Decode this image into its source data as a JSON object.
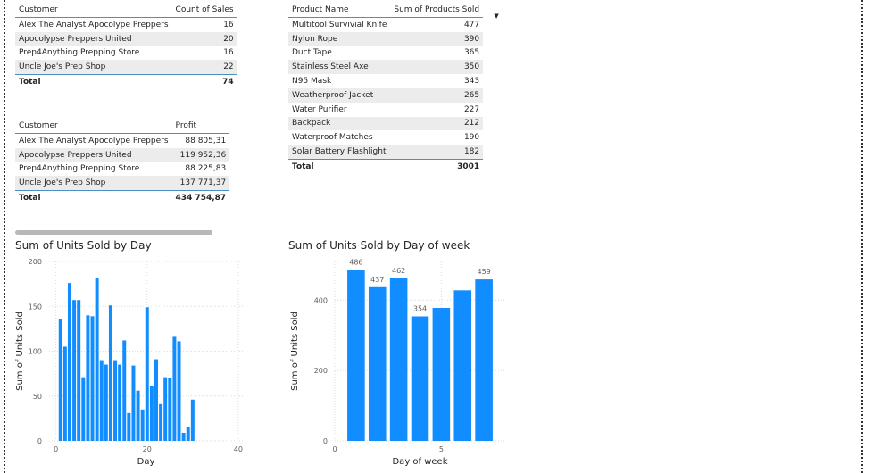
{
  "sales_table": {
    "headers": [
      "Customer",
      "Count of Sales"
    ],
    "rows": [
      [
        "Alex The Analyst Apocolype Preppers",
        "16"
      ],
      [
        "Apocolypse Preppers United",
        "20"
      ],
      [
        "Prep4Anything Prepping Store",
        "16"
      ],
      [
        "Uncle Joe's Prep Shop",
        "22"
      ]
    ],
    "total": [
      "Total",
      "74"
    ]
  },
  "profit_table": {
    "headers": [
      "Customer",
      "Profit"
    ],
    "rows": [
      [
        "Alex The Analyst Apocolype Preppers",
        "88 805,31"
      ],
      [
        "Apocolypse Preppers United",
        "119 952,36"
      ],
      [
        "Prep4Anything Prepping Store",
        "88 225,83"
      ],
      [
        "Uncle Joe's Prep Shop",
        "137 771,37"
      ]
    ],
    "total": [
      "Total",
      "434 754,87"
    ]
  },
  "products_table": {
    "headers": [
      "Product Name",
      "Sum of Products Sold"
    ],
    "sort_icon": "sort-descending-icon",
    "rows": [
      [
        "Multitool Survivial Knife",
        "477"
      ],
      [
        "Nylon Rope",
        "390"
      ],
      [
        "Duct Tape",
        "365"
      ],
      [
        "Stainless Steel Axe",
        "350"
      ],
      [
        "N95 Mask",
        "343"
      ],
      [
        "Weatherproof Jacket",
        "265"
      ],
      [
        "Water Purifier",
        "227"
      ],
      [
        "Backpack",
        "212"
      ],
      [
        "Waterproof Matches",
        "190"
      ],
      [
        "Solar Battery Flashlight",
        "182"
      ]
    ],
    "total": [
      "Total",
      "3001"
    ]
  },
  "colors": {
    "accent": "#118dff",
    "header_rule": "#4a90c2",
    "row_alt": "#ececec"
  },
  "chart_data": [
    {
      "type": "bar",
      "title": "Sum of Units Sold by Day",
      "xlabel": "Day",
      "ylabel": "Sum of Units Sold",
      "x_ticks": [
        0,
        20,
        40
      ],
      "y_ticks": [
        0,
        50,
        100,
        150,
        200
      ],
      "xlim": [
        -1.5,
        41
      ],
      "ylim": [
        0,
        200
      ],
      "grid": true,
      "x": [
        1,
        2,
        3,
        4,
        5,
        6,
        7,
        8,
        9,
        10,
        11,
        12,
        13,
        14,
        15,
        16,
        17,
        18,
        19,
        20,
        21,
        22,
        23,
        24,
        25,
        26,
        27,
        28,
        29,
        30,
        31
      ],
      "values": [
        136,
        105,
        176,
        157,
        157,
        71,
        140,
        139,
        182,
        90,
        85,
        151,
        90,
        85,
        112,
        31,
        84,
        56,
        35,
        149,
        61,
        91,
        41,
        71,
        70,
        116,
        111,
        9,
        15,
        46,
        0
      ]
    },
    {
      "type": "bar",
      "title": "Sum of Units Sold by Day of week",
      "xlabel": "Day of week",
      "ylabel": "Sum of Units Sold",
      "x_ticks": [
        0,
        5
      ],
      "y_ticks": [
        0,
        200,
        400
      ],
      "xlim": [
        0,
        8
      ],
      "ylim": [
        0,
        510
      ],
      "grid": true,
      "x": [
        1,
        2,
        3,
        4,
        5,
        6,
        7
      ],
      "values": [
        486,
        437,
        462,
        354,
        378,
        428,
        459
      ],
      "data_labels": [
        "486",
        "437",
        "462",
        "354",
        "",
        "",
        "459"
      ]
    }
  ]
}
